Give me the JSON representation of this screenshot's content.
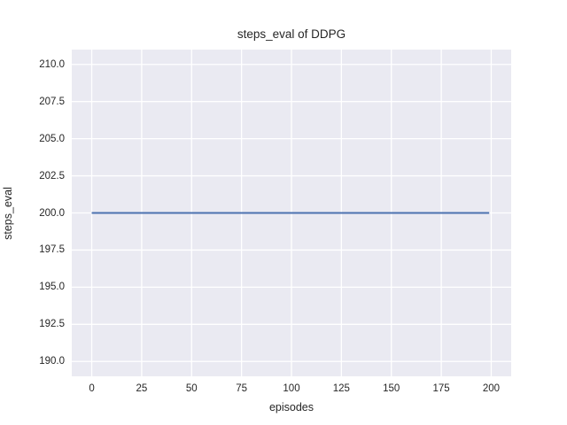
{
  "chart_data": {
    "type": "line",
    "title": "steps_eval of DDPG",
    "xlabel": "episodes",
    "ylabel": "steps_eval",
    "xlim": [
      -10,
      210
    ],
    "ylim": [
      189,
      211
    ],
    "x_ticks": [
      0,
      25,
      50,
      75,
      100,
      125,
      150,
      175,
      200
    ],
    "y_ticks": [
      "190.0",
      "192.5",
      "195.0",
      "197.5",
      "200.0",
      "202.5",
      "205.0",
      "207.5",
      "210.0"
    ],
    "grid": true,
    "legend_visible": false,
    "plot_background": "#EAEAF2",
    "grid_color": "#FFFFFF",
    "text_color": "#262626",
    "series": [
      {
        "name": "steps_eval",
        "color": "#4C72B0",
        "x": [
          0,
          199
        ],
        "y": [
          200,
          200
        ]
      }
    ]
  }
}
